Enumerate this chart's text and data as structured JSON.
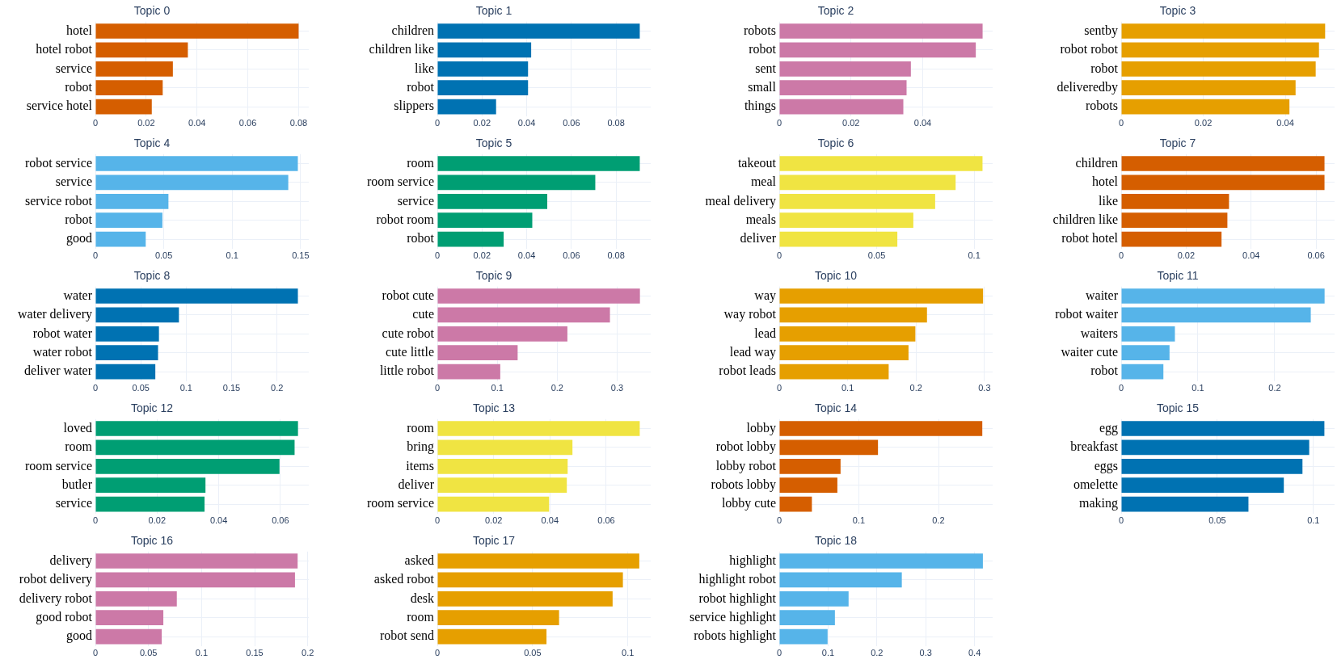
{
  "chart_data": [
    {
      "type": "bar",
      "orientation": "horizontal",
      "title": "Topic 0",
      "categories": [
        "hotel",
        "hotel robot",
        "service",
        "robot",
        "service hotel"
      ],
      "values": [
        0.08,
        0.0364,
        0.0305,
        0.0265,
        0.0222
      ],
      "color": "#d55e00",
      "xlim": [
        0,
        0.084
      ],
      "xticks": [
        0,
        0.02,
        0.04,
        0.06,
        0.08
      ],
      "grid": true
    },
    {
      "type": "bar",
      "orientation": "horizontal",
      "title": "Topic 1",
      "categories": [
        "children",
        "children like",
        "like",
        "robot",
        "slippers"
      ],
      "values": [
        0.0906,
        0.042,
        0.0406,
        0.0406,
        0.0263
      ],
      "color": "#0072b2",
      "xlim": [
        0,
        0.0955
      ],
      "xticks": [
        0,
        0.02,
        0.04,
        0.06,
        0.08
      ],
      "grid": true
    },
    {
      "type": "bar",
      "orientation": "horizontal",
      "title": "Topic 2",
      "categories": [
        "robots",
        "robot",
        "sent",
        "small",
        "things"
      ],
      "values": [
        0.0567,
        0.0548,
        0.0367,
        0.0355,
        0.0346
      ],
      "color": "#cc79a7",
      "xlim": [
        0,
        0.0595
      ],
      "xticks": [
        0,
        0.02,
        0.04
      ],
      "grid": true
    },
    {
      "type": "bar",
      "orientation": "horizontal",
      "title": "Topic 3",
      "categories": [
        "sentby",
        "robot robot",
        "robot",
        "deliveredby",
        "robots"
      ],
      "values": [
        0.0497,
        0.0482,
        0.0474,
        0.0425,
        0.041
      ],
      "color": "#e69f00",
      "xlim": [
        0,
        0.052
      ],
      "xticks": [
        0,
        0.02,
        0.04
      ],
      "grid": true
    },
    {
      "type": "bar",
      "orientation": "horizontal",
      "title": "Topic 4",
      "categories": [
        "robot service",
        "service",
        "service robot",
        "robot",
        "good"
      ],
      "values": [
        0.148,
        0.141,
        0.0534,
        0.049,
        0.0368
      ],
      "color": "#56b4e9",
      "xlim": [
        0,
        0.156
      ],
      "xticks": [
        0,
        0.05,
        0.1,
        0.15
      ],
      "grid": true
    },
    {
      "type": "bar",
      "orientation": "horizontal",
      "title": "Topic 5",
      "categories": [
        "room",
        "room service",
        "service",
        "robot room",
        "robot"
      ],
      "values": [
        0.0906,
        0.0707,
        0.0492,
        0.0425,
        0.0297
      ],
      "color": "#009e73",
      "xlim": [
        0,
        0.0955
      ],
      "xticks": [
        0,
        0.02,
        0.04,
        0.06,
        0.08
      ],
      "grid": true
    },
    {
      "type": "bar",
      "orientation": "horizontal",
      "title": "Topic 6",
      "categories": [
        "takeout",
        "meal",
        "meal delivery",
        "meals",
        "deliver"
      ],
      "values": [
        0.1043,
        0.0905,
        0.08,
        0.0688,
        0.0606
      ],
      "color": "#f0e442",
      "xlim": [
        0,
        0.1095
      ],
      "xticks": [
        0,
        0.05,
        0.1
      ],
      "grid": true
    },
    {
      "type": "bar",
      "orientation": "horizontal",
      "title": "Topic 7",
      "categories": [
        "children",
        "hotel",
        "like",
        "children like",
        "robot hotel"
      ],
      "values": [
        0.0626,
        0.0626,
        0.0332,
        0.0327,
        0.0309
      ],
      "color": "#d55e00",
      "xlim": [
        0,
        0.0657
      ],
      "xticks": [
        0,
        0.02,
        0.04,
        0.06
      ],
      "grid": true
    },
    {
      "type": "bar",
      "orientation": "horizontal",
      "title": "Topic 8",
      "categories": [
        "water",
        "water delivery",
        "robot water",
        "water robot",
        "deliver water"
      ],
      "values": [
        0.223,
        0.092,
        0.07,
        0.069,
        0.066
      ],
      "color": "#0072b2",
      "xlim": [
        0,
        0.235
      ],
      "xticks": [
        0,
        0.05,
        0.1,
        0.15,
        0.2
      ],
      "grid": true
    },
    {
      "type": "bar",
      "orientation": "horizontal",
      "title": "Topic 9",
      "categories": [
        "robot cute",
        "cute",
        "cute robot",
        "cute little",
        "little robot"
      ],
      "values": [
        0.338,
        0.288,
        0.217,
        0.134,
        0.105
      ],
      "color": "#cc79a7",
      "xlim": [
        0,
        0.356
      ],
      "xticks": [
        0,
        0.1,
        0.2,
        0.3
      ],
      "grid": true
    },
    {
      "type": "bar",
      "orientation": "horizontal",
      "title": "Topic 10",
      "categories": [
        "way",
        "way robot",
        "lead",
        "lead way",
        "robot leads"
      ],
      "values": [
        0.298,
        0.216,
        0.199,
        0.189,
        0.16
      ],
      "color": "#e69f00",
      "xlim": [
        0,
        0.312
      ],
      "xticks": [
        0,
        0.1,
        0.2,
        0.3
      ],
      "grid": true
    },
    {
      "type": "bar",
      "orientation": "horizontal",
      "title": "Topic 11",
      "categories": [
        "waiter",
        "robot waiter",
        "waiters",
        "waiter cute",
        "robot"
      ],
      "values": [
        0.265,
        0.247,
        0.07,
        0.063,
        0.055
      ],
      "color": "#56b4e9",
      "xlim": [
        0,
        0.278
      ],
      "xticks": [
        0,
        0.1,
        0.2
      ],
      "grid": true
    },
    {
      "type": "bar",
      "orientation": "horizontal",
      "title": "Topic 12",
      "categories": [
        "loved",
        "room",
        "room service",
        "butler",
        "service"
      ],
      "values": [
        0.0657,
        0.0646,
        0.0597,
        0.0357,
        0.0354
      ],
      "color": "#009e73",
      "xlim": [
        0,
        0.0692
      ],
      "xticks": [
        0,
        0.02,
        0.04,
        0.06
      ],
      "grid": true
    },
    {
      "type": "bar",
      "orientation": "horizontal",
      "title": "Topic 13",
      "categories": [
        "room",
        "bring",
        "items",
        "deliver",
        "room service"
      ],
      "values": [
        0.0719,
        0.048,
        0.0463,
        0.046,
        0.0397
      ],
      "color": "#f0e442",
      "xlim": [
        0,
        0.0758
      ],
      "xticks": [
        0,
        0.02,
        0.04,
        0.06
      ],
      "grid": true
    },
    {
      "type": "bar",
      "orientation": "horizontal",
      "title": "Topic 14",
      "categories": [
        "lobby",
        "robot lobby",
        "lobby robot",
        "robots lobby",
        "lobby cute"
      ],
      "values": [
        0.255,
        0.124,
        0.077,
        0.073,
        0.041
      ],
      "color": "#d55e00",
      "xlim": [
        0,
        0.268
      ],
      "xticks": [
        0,
        0.1,
        0.2
      ],
      "grid": true
    },
    {
      "type": "bar",
      "orientation": "horizontal",
      "title": "Topic 15",
      "categories": [
        "egg",
        "breakfast",
        "eggs",
        "omelette",
        "making"
      ],
      "values": [
        0.1057,
        0.0978,
        0.0943,
        0.0846,
        0.0662
      ],
      "color": "#0072b2",
      "xlim": [
        0,
        0.111
      ],
      "xticks": [
        0,
        0.05,
        0.1
      ],
      "grid": true
    },
    {
      "type": "bar",
      "orientation": "horizontal",
      "title": "Topic 16",
      "categories": [
        "delivery",
        "robot delivery",
        "delivery robot",
        "good robot",
        "good"
      ],
      "values": [
        0.1905,
        0.188,
        0.0767,
        0.064,
        0.0625
      ],
      "color": "#cc79a7",
      "xlim": [
        0,
        0.201
      ],
      "xticks": [
        0,
        0.05,
        0.1,
        0.15,
        0.2
      ],
      "grid": true
    },
    {
      "type": "bar",
      "orientation": "horizontal",
      "title": "Topic 17",
      "categories": [
        "asked",
        "asked robot",
        "desk",
        "room",
        "robot send"
      ],
      "values": [
        0.106,
        0.0974,
        0.092,
        0.0639,
        0.0573
      ],
      "color": "#e69f00",
      "xlim": [
        0,
        0.112
      ],
      "xticks": [
        0,
        0.05,
        0.1
      ],
      "grid": true
    },
    {
      "type": "bar",
      "orientation": "horizontal",
      "title": "Topic 18",
      "categories": [
        "highlight",
        "highlight robot",
        "robot highlight",
        "service highlight",
        "robots highlight"
      ],
      "values": [
        0.417,
        0.251,
        0.142,
        0.114,
        0.099
      ],
      "color": "#56b4e9",
      "xlim": [
        0,
        0.437
      ],
      "xticks": [
        0,
        0.1,
        0.2,
        0.3,
        0.4
      ],
      "grid": true
    }
  ]
}
